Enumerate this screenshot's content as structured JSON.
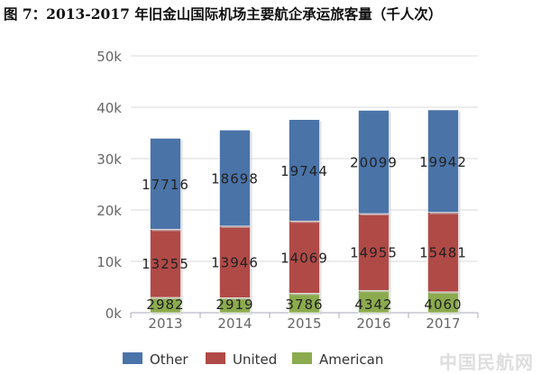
{
  "title": "图 7：2013-2017 年旧金山国际机场主要航企承运旅客量（千人次）",
  "watermark": "中国民航网",
  "chart_data": {
    "type": "bar",
    "stacked": true,
    "title": "图 7：2013-2017 年旧金山国际机场主要航企承运旅客量（千人次）",
    "xlabel": "",
    "ylabel": "",
    "categories": [
      "2013",
      "2014",
      "2015",
      "2016",
      "2017"
    ],
    "ylim": [
      0,
      50000
    ],
    "yticks": [
      0,
      10000,
      20000,
      30000,
      40000,
      50000
    ],
    "ytick_labels": [
      "0k",
      "10k",
      "20k",
      "30k",
      "40k",
      "50k"
    ],
    "grid": true,
    "legend": "bottom",
    "series": [
      {
        "name": "American",
        "color": "#8bab4e",
        "values": [
          2982,
          2919,
          3786,
          4342,
          4060
        ]
      },
      {
        "name": "United",
        "color": "#b04a47",
        "values": [
          13255,
          13946,
          14069,
          14955,
          15481
        ]
      },
      {
        "name": "Other",
        "color": "#4a73a8",
        "values": [
          17716,
          18698,
          19744,
          20099,
          19942
        ]
      }
    ]
  }
}
